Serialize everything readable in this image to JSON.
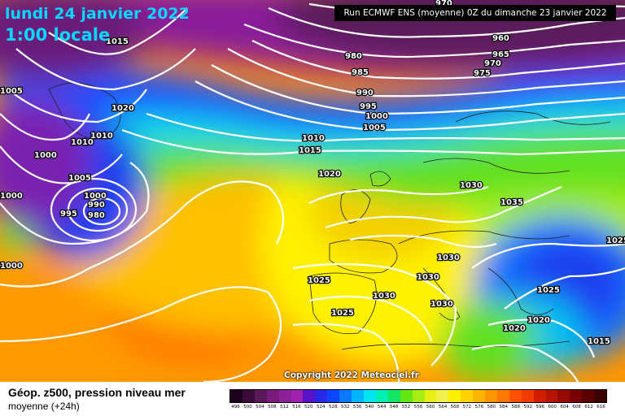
{
  "map": {
    "date_line": "lundi 24 janvier 2022",
    "time_line": "1:00 locale",
    "run_info": "Run ECMWF ENS (moyenne) 0Z du dimanche 23 janvier 2022",
    "copyright": "Copyright 2022 Meteociel.fr",
    "isobar_labels": [
      "970",
      "960",
      "965",
      "970",
      "975",
      "980",
      "985",
      "990",
      "995",
      "1000",
      "1005",
      "1010",
      "1015",
      "1020",
      "1015",
      "1020",
      "1010",
      "1010",
      "1000",
      "1005",
      "1000",
      "1000",
      "990",
      "995",
      "980",
      "1030",
      "1035",
      "1030",
      "1030",
      "1030",
      "1025",
      "1030",
      "1025",
      "1025",
      "1020",
      "1020",
      "1025",
      "1015",
      "1005",
      "1000"
    ]
  },
  "footer": {
    "title": "Géop. z500, pression niveau mer",
    "subtitle": "moyenne  (+24h)"
  },
  "legend": {
    "ticks": [
      "496",
      "500",
      "504",
      "508",
      "512",
      "516",
      "520",
      "524",
      "528",
      "532",
      "536",
      "540",
      "544",
      "548",
      "552",
      "556",
      "560",
      "564",
      "568",
      "572",
      "576",
      "580",
      "584",
      "588",
      "592",
      "596",
      "600",
      "604",
      "608",
      "612",
      "616"
    ],
    "colors": [
      "#1c001c",
      "#3a0a3a",
      "#5a1a5a",
      "#7a1a7a",
      "#8c2096",
      "#a020b0",
      "#5a12c8",
      "#2828e6",
      "#0a46ff",
      "#0a78ff",
      "#00b4ff",
      "#00e6f0",
      "#00f0b4",
      "#14e664",
      "#64e614",
      "#a8ee14",
      "#e6f014",
      "#f0f050",
      "#fff000",
      "#ffd200",
      "#ffb400",
      "#ff9600",
      "#ff7800",
      "#ff5000",
      "#f03c00",
      "#d21e00",
      "#b41400",
      "#960a00",
      "#780000",
      "#5a0000",
      "#3c0000"
    ]
  }
}
